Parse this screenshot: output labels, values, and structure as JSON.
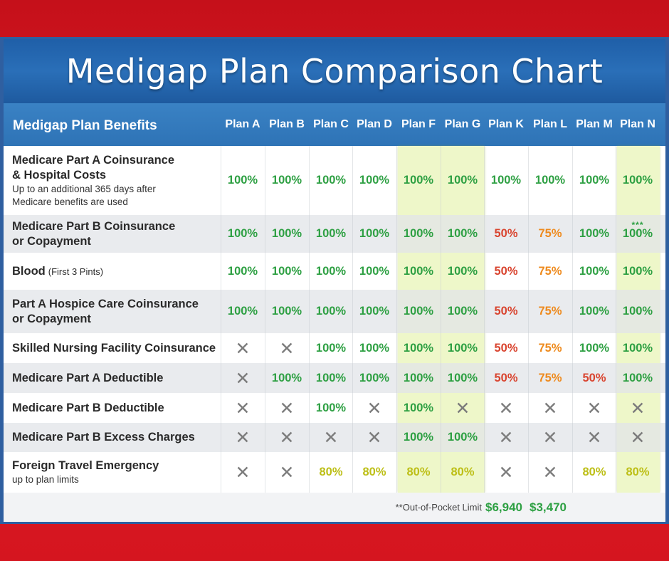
{
  "title": "Medigap Plan Comparison Chart",
  "chart_data": {
    "type": "table",
    "header": {
      "benefits_label": "Medigap Plan Benefits",
      "plans": [
        "Plan A",
        "Plan B",
        "Plan C",
        "Plan D",
        "Plan F",
        "Plan G",
        "Plan K",
        "Plan L",
        "Plan M",
        "Plan N"
      ]
    },
    "highlighted_plans": [
      "Plan F",
      "Plan G",
      "Plan N"
    ],
    "rows": [
      {
        "label": "Medicare Part A Coinsurance",
        "label2": "& Hospital Costs",
        "sub": "Up to an additional 365 days after",
        "sub2": "Medicare benefits are used",
        "values": [
          "100%",
          "100%",
          "100%",
          "100%",
          "100%",
          "100%",
          "100%",
          "100%",
          "100%",
          "100%"
        ]
      },
      {
        "label": "Medicare Part B Coinsurance",
        "label2": "or Copayment",
        "values": [
          "100%",
          "100%",
          "100%",
          "100%",
          "100%",
          "100%",
          "50%",
          "75%",
          "100%",
          "100%"
        ],
        "plan_n_note": "***"
      },
      {
        "label": "Blood",
        "note": "(First 3 Pints)",
        "values": [
          "100%",
          "100%",
          "100%",
          "100%",
          "100%",
          "100%",
          "50%",
          "75%",
          "100%",
          "100%"
        ]
      },
      {
        "label": "Part A Hospice Care Coinsurance",
        "label2": "or Copayment",
        "values": [
          "100%",
          "100%",
          "100%",
          "100%",
          "100%",
          "100%",
          "50%",
          "75%",
          "100%",
          "100%"
        ]
      },
      {
        "label": "Skilled Nursing Facility Coinsurance",
        "values": [
          "x",
          "x",
          "100%",
          "100%",
          "100%",
          "100%",
          "50%",
          "75%",
          "100%",
          "100%"
        ]
      },
      {
        "label": "Medicare Part A Deductible",
        "values": [
          "x",
          "100%",
          "100%",
          "100%",
          "100%",
          "100%",
          "50%",
          "75%",
          "50%",
          "100%"
        ]
      },
      {
        "label": "Medicare Part B Deductible",
        "values": [
          "x",
          "x",
          "100%",
          "x",
          "100%",
          "x",
          "x",
          "x",
          "x",
          "x"
        ]
      },
      {
        "label": "Medicare Part B Excess Charges",
        "values": [
          "x",
          "x",
          "x",
          "x",
          "100%",
          "100%",
          "x",
          "x",
          "x",
          "x"
        ]
      },
      {
        "label": "Foreign Travel Emergency",
        "sub": "up to plan limits",
        "values": [
          "x",
          "x",
          "80%",
          "80%",
          "80%",
          "80%",
          "x",
          "x",
          "80%",
          "80%"
        ]
      }
    ],
    "footer": {
      "label": "**Out-of-Pocket Limit",
      "plan_k": "$6,940",
      "plan_l": "$3,470"
    }
  },
  "colors": {
    "full": "#2ea043",
    "half": "#d9442f",
    "three_quarter": "#ee8a1d",
    "eighty": "#bdbf17",
    "not_covered": "#7c7c7c",
    "header_blue": "#2e73b6",
    "highlight": "#eef7c9"
  },
  "icons": {
    "not_covered": "x-mark-icon"
  }
}
